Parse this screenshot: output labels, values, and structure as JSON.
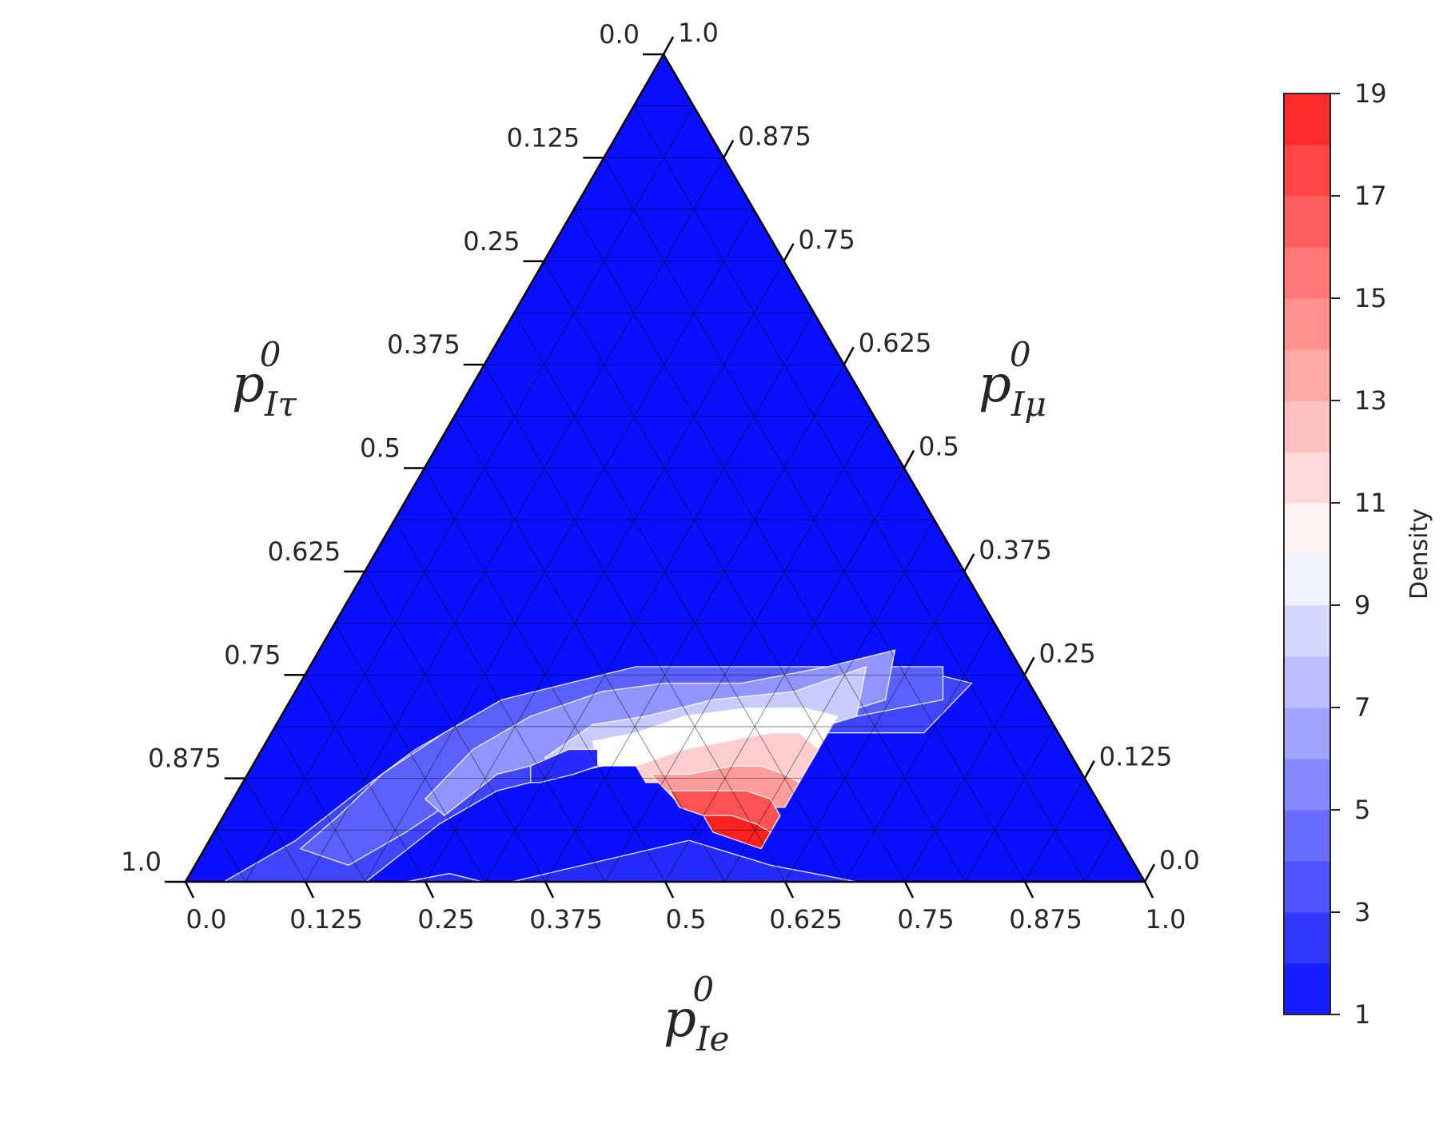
{
  "chart_data": {
    "type": "ternary-contour",
    "axes": {
      "bottom": {
        "label_main": "p",
        "label_sub": "Ie",
        "label_sup": "0",
        "ticks": [
          "0.0",
          "0.125",
          "0.25",
          "0.375",
          "0.5",
          "0.625",
          "0.75",
          "0.875",
          "1.0"
        ]
      },
      "right": {
        "label_main": "p",
        "label_sub": "Iμ",
        "label_sup": "0",
        "ticks": [
          "0.0",
          "0.125",
          "0.25",
          "0.375",
          "0.5",
          "0.625",
          "0.75",
          "0.875",
          "1.0"
        ]
      },
      "left": {
        "label_main": "p",
        "label_sub": "Iτ",
        "label_sup": "0",
        "ticks": [
          "0.0",
          "0.125",
          "0.25",
          "0.375",
          "0.5",
          "0.625",
          "0.75",
          "0.875",
          "1.0"
        ]
      }
    },
    "grid": true,
    "grid_divisions": 16,
    "colorbar": {
      "label": "Density",
      "range": [
        1,
        19
      ],
      "ticks": [
        "1",
        "3",
        "5",
        "7",
        "9",
        "11",
        "13",
        "15",
        "17",
        "19"
      ],
      "levels": 18,
      "colormap": "bwr",
      "low_color": "#0a10ff",
      "mid_color": "#ffffff",
      "high_color": "#ff2020"
    },
    "density_regions": [
      {
        "level": 1,
        "description": "background"
      },
      {
        "level": 2,
        "polygon_abc": [
          [
            0.34,
            0.66
          ],
          [
            0.31,
            0.69
          ],
          [
            0.27,
            0.72
          ],
          [
            0.23,
            0.77
          ],
          [
            0.2,
            0.8
          ],
          [
            0.1,
            0.9
          ],
          [
            0.02,
            0.98
          ],
          [
            0.98,
            0.02
          ],
          [
            0.7,
            0.3
          ],
          [
            0.6,
            0.38
          ],
          [
            0.5,
            0.45
          ]
        ]
      },
      {
        "level": 3,
        "polygon_abc": [
          [
            0.04,
            0.96
          ],
          [
            0.09,
            0.86
          ],
          [
            0.12,
            0.78
          ],
          [
            0.16,
            0.68
          ],
          [
            0.2,
            0.6
          ],
          [
            0.26,
            0.52
          ],
          [
            0.33,
            0.44
          ],
          [
            0.4,
            0.36
          ],
          [
            0.48,
            0.28
          ],
          [
            0.56,
            0.2
          ],
          [
            0.62,
            0.12
          ],
          [
            0.7,
            0.06
          ],
          [
            0.68,
            0.14
          ],
          [
            0.58,
            0.24
          ],
          [
            0.48,
            0.35
          ],
          [
            0.4,
            0.45
          ],
          [
            0.33,
            0.54
          ],
          [
            0.27,
            0.62
          ],
          [
            0.23,
            0.7
          ],
          [
            0.2,
            0.78
          ],
          [
            0.17,
            0.86
          ],
          [
            0.12,
            0.9
          ]
        ]
      },
      {
        "level": 4,
        "polygon_abc": [
          [
            0.1,
            0.86
          ],
          [
            0.12,
            0.8
          ],
          [
            0.14,
            0.73
          ],
          [
            0.18,
            0.64
          ],
          [
            0.22,
            0.56
          ],
          [
            0.28,
            0.48
          ],
          [
            0.34,
            0.4
          ],
          [
            0.42,
            0.32
          ],
          [
            0.52,
            0.22
          ],
          [
            0.6,
            0.14
          ],
          [
            0.66,
            0.08
          ],
          [
            0.68,
            0.1
          ],
          [
            0.6,
            0.2
          ],
          [
            0.5,
            0.3
          ],
          [
            0.41,
            0.4
          ],
          [
            0.34,
            0.49
          ],
          [
            0.28,
            0.57
          ],
          [
            0.24,
            0.65
          ],
          [
            0.2,
            0.74
          ],
          [
            0.16,
            0.82
          ]
        ]
      },
      {
        "level": 6,
        "polygon_abc": [
          [
            0.2,
            0.7
          ],
          [
            0.22,
            0.62
          ],
          [
            0.26,
            0.54
          ],
          [
            0.32,
            0.45
          ],
          [
            0.38,
            0.38
          ],
          [
            0.46,
            0.3
          ],
          [
            0.54,
            0.2
          ],
          [
            0.6,
            0.12
          ],
          [
            0.62,
            0.16
          ],
          [
            0.55,
            0.26
          ],
          [
            0.47,
            0.36
          ],
          [
            0.39,
            0.45
          ],
          [
            0.32,
            0.53
          ],
          [
            0.26,
            0.61
          ],
          [
            0.23,
            0.69
          ]
        ]
      },
      {
        "level": 8,
        "polygon_abc": [
          [
            0.3,
            0.55
          ],
          [
            0.33,
            0.48
          ],
          [
            0.38,
            0.42
          ],
          [
            0.44,
            0.34
          ],
          [
            0.52,
            0.25
          ],
          [
            0.58,
            0.16
          ],
          [
            0.6,
            0.2
          ],
          [
            0.53,
            0.3
          ],
          [
            0.46,
            0.38
          ],
          [
            0.39,
            0.46
          ],
          [
            0.33,
            0.54
          ]
        ]
      },
      {
        "level": 10,
        "polygon_abc": [
          [
            0.34,
            0.49
          ],
          [
            0.38,
            0.44
          ],
          [
            0.42,
            0.38
          ],
          [
            0.48,
            0.31
          ],
          [
            0.54,
            0.25
          ],
          [
            0.58,
            0.22
          ],
          [
            0.58,
            0.27
          ],
          [
            0.53,
            0.33
          ],
          [
            0.47,
            0.39
          ],
          [
            0.41,
            0.45
          ],
          [
            0.36,
            0.5
          ]
        ]
      },
      {
        "level": 12,
        "polygon_abc": [
          [
            0.4,
            0.46
          ],
          [
            0.44,
            0.4
          ],
          [
            0.48,
            0.35
          ],
          [
            0.52,
            0.3
          ],
          [
            0.55,
            0.27
          ],
          [
            0.58,
            0.26
          ],
          [
            0.58,
            0.3
          ],
          [
            0.54,
            0.34
          ],
          [
            0.49,
            0.38
          ],
          [
            0.45,
            0.43
          ],
          [
            0.42,
            0.46
          ]
        ]
      },
      {
        "level": 14,
        "polygon_abc": [
          [
            0.42,
            0.45
          ],
          [
            0.46,
            0.41
          ],
          [
            0.5,
            0.36
          ],
          [
            0.53,
            0.33
          ],
          [
            0.56,
            0.31
          ],
          [
            0.58,
            0.3
          ],
          [
            0.58,
            0.33
          ],
          [
            0.55,
            0.36
          ],
          [
            0.5,
            0.4
          ],
          [
            0.46,
            0.44
          ]
        ]
      },
      {
        "level": 17,
        "polygon_abc": [
          [
            0.45,
            0.44
          ],
          [
            0.49,
            0.4
          ],
          [
            0.53,
            0.36
          ],
          [
            0.56,
            0.34
          ],
          [
            0.58,
            0.34
          ],
          [
            0.58,
            0.36
          ],
          [
            0.54,
            0.39
          ],
          [
            0.5,
            0.42
          ],
          [
            0.47,
            0.44
          ]
        ]
      },
      {
        "level": 19,
        "polygon_abc": [
          [
            0.5,
            0.42
          ],
          [
            0.53,
            0.39
          ],
          [
            0.56,
            0.37
          ],
          [
            0.58,
            0.36
          ],
          [
            0.58,
            0.38
          ],
          [
            0.55,
            0.4
          ],
          [
            0.52,
            0.42
          ]
        ]
      },
      {
        "level": 2,
        "polygon_abc": [
          [
            0.29,
            0.57
          ],
          [
            0.32,
            0.52
          ],
          [
            0.35,
            0.49
          ],
          [
            0.36,
            0.5
          ],
          [
            0.34,
            0.53
          ],
          [
            0.31,
            0.57
          ],
          [
            0.3,
            0.58
          ]
        ]
      }
    ]
  }
}
